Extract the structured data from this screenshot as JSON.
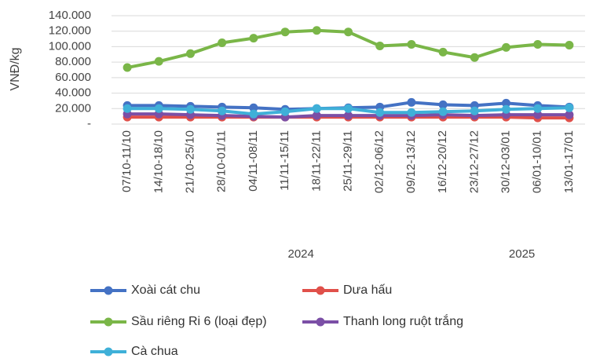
{
  "chart_data": {
    "type": "line",
    "y_label": "VNĐ/kg",
    "categories": [
      "07/10-11/10",
      "14/10-18/10",
      "21/10-25/10",
      "28/10-01/11",
      "04/11-08/11",
      "11/11-15/11",
      "18/11-22/11",
      "25/11-29/11",
      "02/12-06/12",
      "09/12-13/12",
      "16/12-20/12",
      "23/12-27/12",
      "30/12-03/01",
      "06/01-10/01",
      "13/01-17/01"
    ],
    "x_group_labels": [
      "2024",
      "2025"
    ],
    "ylim": [
      0,
      140000
    ],
    "yticks": [
      {
        "value": 0,
        "label": "-"
      },
      {
        "value": 20000,
        "label": "20.000"
      },
      {
        "value": 40000,
        "label": "40.000"
      },
      {
        "value": 60000,
        "label": "60.000"
      },
      {
        "value": 80000,
        "label": "80.000"
      },
      {
        "value": 100000,
        "label": "100.000"
      },
      {
        "value": 120000,
        "label": "120.000"
      },
      {
        "value": 140000,
        "label": "140.000"
      }
    ],
    "grid": true,
    "series": [
      {
        "name": "Xoài cát chu",
        "color": "#4472c4",
        "values": [
          24000,
          24000,
          23000,
          22000,
          21000,
          19000,
          20000,
          21000,
          22000,
          28000,
          25000,
          24000,
          27000,
          24000,
          22000
        ]
      },
      {
        "name": "Dưa hấu",
        "color": "#e0504a",
        "values": [
          9000,
          9000,
          9000,
          9000,
          9000,
          9000,
          9000,
          9000,
          9000,
          9000,
          9000,
          9000,
          9000,
          8000,
          8000
        ]
      },
      {
        "name": "Sầu riêng Ri 6 (loại đẹp)",
        "color": "#7ab648",
        "values": [
          73000,
          81000,
          91000,
          105000,
          111000,
          119000,
          121000,
          119000,
          101000,
          103000,
          93000,
          86000,
          99000,
          103000,
          102000
        ]
      },
      {
        "name": "Thanh long ruột trắng",
        "color": "#7b4fa6",
        "values": [
          13000,
          13000,
          12000,
          11000,
          10000,
          9000,
          11000,
          11000,
          11000,
          11000,
          12000,
          11000,
          12000,
          12000,
          12000
        ]
      },
      {
        "name": "Cà chua",
        "color": "#3fb0d8",
        "values": [
          20000,
          20000,
          19000,
          17000,
          13000,
          16000,
          20000,
          20000,
          15000,
          15000,
          16000,
          17000,
          19000,
          20000,
          21000
        ]
      }
    ]
  }
}
